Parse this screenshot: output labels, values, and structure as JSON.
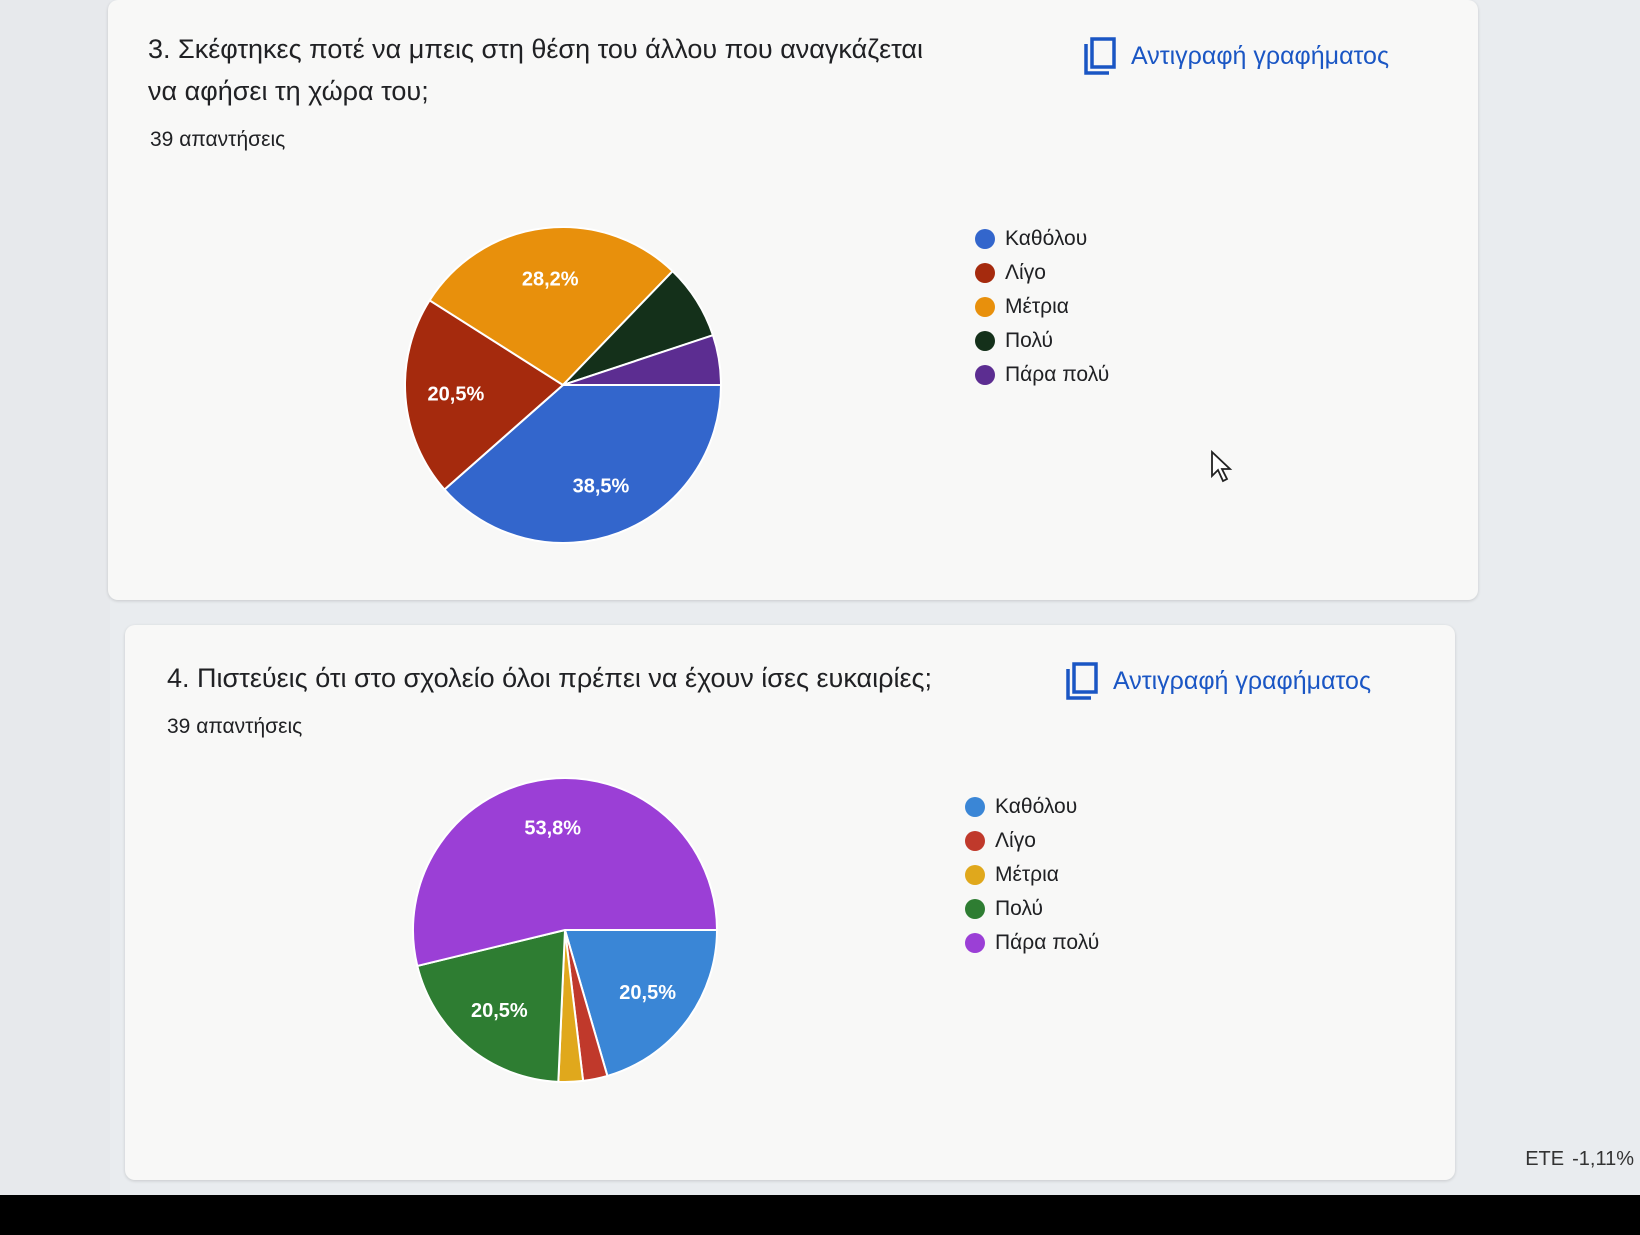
{
  "questions": [
    {
      "title_line1": "3. Σκέφτηκες ποτέ να μπεις στη θέση του άλλου που αναγκάζεται",
      "title_line2": "να αφήσει τη χώρα του;",
      "responses": "39 απαντήσεις",
      "copy_label": "Αντιγραφή γραφήματος"
    },
    {
      "title_line1": "4. Πιστεύεις ότι στο σχολείο όλοι πρέπει να έχουν ίσες ευκαιρίες;",
      "responses": "39 απαντήσεις",
      "copy_label": "Αντιγραφή γραφήματος"
    }
  ],
  "chart_data": [
    {
      "type": "pie",
      "categories": [
        "Καθόλου",
        "Λίγο",
        "Μέτρια",
        "Πολύ",
        "Πάρα πολύ"
      ],
      "values": [
        38.5,
        20.5,
        28.2,
        7.7,
        5.1
      ],
      "labels": [
        "38,5%",
        "20,5%",
        "28,2%",
        "",
        ""
      ],
      "colors": [
        "#3366cc",
        "#a52a0d",
        "#e8900c",
        "#14301a",
        "#5c2d91"
      ],
      "legend_position": "right"
    },
    {
      "type": "pie",
      "categories": [
        "Καθόλου",
        "Λίγο",
        "Μέτρια",
        "Πολύ",
        "Πάρα πολύ"
      ],
      "values": [
        20.5,
        2.6,
        2.6,
        20.5,
        53.8
      ],
      "labels": [
        "20,5%",
        "",
        "",
        "20,5%",
        "53,8%"
      ],
      "colors": [
        "#3a86d6",
        "#c0392b",
        "#e0a81c",
        "#2e7d32",
        "#9b3fd6"
      ],
      "legend_position": "right"
    }
  ],
  "ticker": {
    "symbol": "ETE",
    "change": "-1,11%"
  }
}
